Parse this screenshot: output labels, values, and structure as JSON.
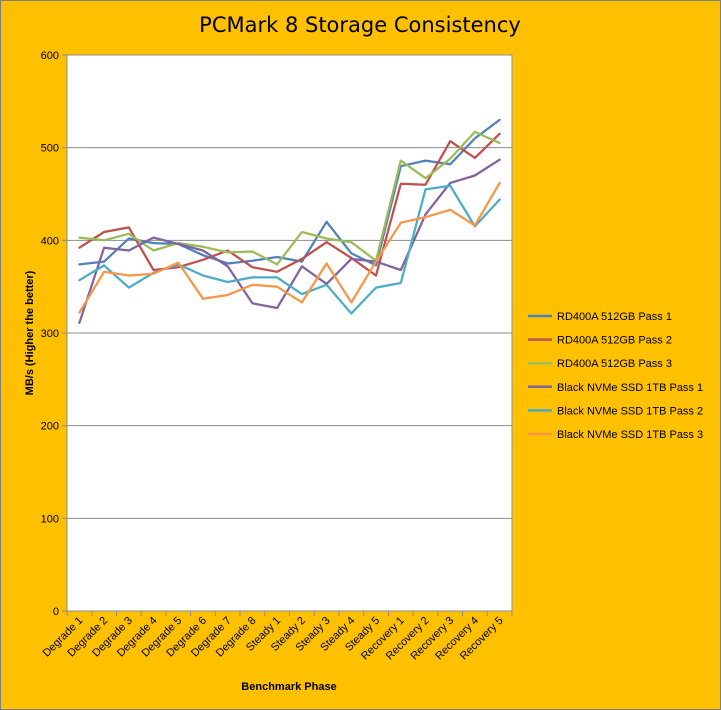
{
  "chart_data": {
    "type": "line",
    "title": "PCMark 8 Storage Consistency",
    "xlabel": "Benchmark Phase",
    "ylabel": "MB/s (Higher the better)",
    "ylim": [
      0,
      600
    ],
    "yticks": [
      "0",
      "100",
      "200",
      "300",
      "400",
      "500",
      "600"
    ],
    "grid": true,
    "legend": "right",
    "categories": [
      "Degrade 1",
      "Degrade 2",
      "Degrade 3",
      "Degrade 4",
      "Degrade 5",
      "Degrade 6",
      "Degrade 7",
      "Degrade 8",
      "Steady 1",
      "Steady 2",
      "Steady 3",
      "Steady 4",
      "Steady 5",
      "Recovery 1",
      "Recovery 2",
      "Recovery 3",
      "Recovery 4",
      "Recovery 5"
    ],
    "series": [
      {
        "name": "RD400A 512GB Pass 1",
        "color": "#4F81BD",
        "values": [
          374,
          377,
          402,
          397,
          396,
          384,
          375,
          378,
          382,
          377,
          420,
          386,
          373,
          480,
          486,
          482,
          510,
          530
        ]
      },
      {
        "name": "RD400A 512GB Pass 2",
        "color": "#C0504D",
        "values": [
          392,
          409,
          414,
          368,
          371,
          379,
          389,
          371,
          366,
          380,
          398,
          381,
          362,
          461,
          460,
          507,
          489,
          515
        ]
      },
      {
        "name": "RD400A 512GB Pass 3",
        "color": "#9BBB59",
        "values": [
          403,
          400,
          407,
          389,
          397,
          393,
          387,
          388,
          374,
          409,
          402,
          398,
          378,
          486,
          467,
          488,
          517,
          505
        ]
      },
      {
        "name": "Black NVMe SSD 1TB Pass 1",
        "color": "#8064A2",
        "values": [
          311,
          392,
          389,
          403,
          396,
          389,
          372,
          332,
          327,
          372,
          353,
          380,
          377,
          368,
          428,
          462,
          470,
          487
        ]
      },
      {
        "name": "Black NVMe SSD 1TB Pass 2",
        "color": "#4BACC6",
        "values": [
          357,
          373,
          349,
          365,
          374,
          362,
          355,
          360,
          360,
          342,
          352,
          321,
          349,
          354,
          455,
          459,
          415,
          444
        ]
      },
      {
        "name": "Black NVMe SSD 1TB Pass 3",
        "color": "#F79646",
        "values": [
          322,
          366,
          362,
          364,
          376,
          337,
          341,
          352,
          350,
          333,
          375,
          333,
          377,
          419,
          425,
          433,
          416,
          462
        ]
      }
    ]
  }
}
